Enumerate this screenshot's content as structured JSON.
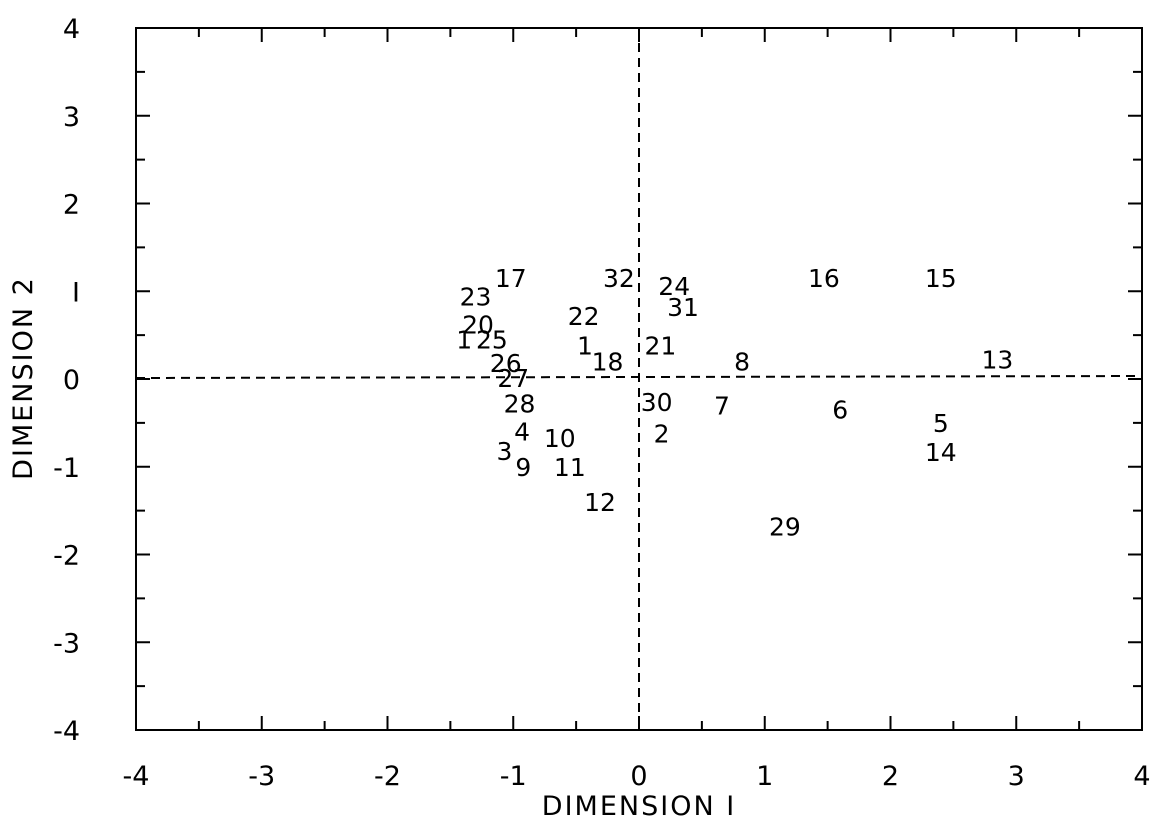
{
  "chart_data": {
    "type": "scatter",
    "title": "",
    "xlabel": "DIMENSION I",
    "ylabel": "DIMENSION 2",
    "xlim": [
      -4,
      4
    ],
    "ylim": [
      -4,
      4
    ],
    "x_ticks": [
      -4,
      -3,
      -2,
      -1,
      0,
      1,
      2,
      3,
      4
    ],
    "y_ticks": [
      -4,
      -3,
      -2,
      -1,
      0,
      1,
      2,
      3,
      4
    ],
    "x_tick_labels": [
      "-4",
      "-3",
      "-2",
      "-1",
      "0",
      "1",
      "2",
      "3",
      "4"
    ],
    "y_tick_labels": [
      "-4",
      "-3",
      "-2",
      "-1",
      "0",
      "I",
      "2",
      "3",
      "4"
    ],
    "grid": false,
    "reference_lines": "dashed lines at x=0 and y=0",
    "points": [
      {
        "label": "1",
        "x": -0.43,
        "y": 0.38
      },
      {
        "label": "2",
        "x": 0.18,
        "y": -0.62
      },
      {
        "label": "3",
        "x": -1.07,
        "y": -0.82
      },
      {
        "label": "4",
        "x": -0.93,
        "y": -0.6
      },
      {
        "label": "5",
        "x": 2.4,
        "y": -0.5
      },
      {
        "label": "6",
        "x": 1.6,
        "y": -0.35
      },
      {
        "label": "7",
        "x": 0.66,
        "y": -0.3
      },
      {
        "label": "8",
        "x": 0.82,
        "y": 0.2
      },
      {
        "label": "9",
        "x": -0.92,
        "y": -1.0
      },
      {
        "label": "10",
        "x": -0.63,
        "y": -0.67
      },
      {
        "label": "11",
        "x": -0.55,
        "y": -1.0
      },
      {
        "label": "12",
        "x": -0.31,
        "y": -1.4
      },
      {
        "label": "13",
        "x": 2.85,
        "y": 0.22
      },
      {
        "label": "14",
        "x": 2.4,
        "y": -0.83
      },
      {
        "label": "15",
        "x": 2.4,
        "y": 1.15
      },
      {
        "label": "16",
        "x": 1.47,
        "y": 1.15
      },
      {
        "label": "17",
        "x": -1.02,
        "y": 1.15
      },
      {
        "label": "18",
        "x": -0.25,
        "y": 0.2
      },
      {
        "label": "20",
        "x": -1.28,
        "y": 0.62
      },
      {
        "label": "21",
        "x": 0.17,
        "y": 0.38
      },
      {
        "label": "22",
        "x": -0.44,
        "y": 0.72
      },
      {
        "label": "23",
        "x": -1.3,
        "y": 0.94
      },
      {
        "label": "24",
        "x": 0.28,
        "y": 1.06
      },
      {
        "label": "25",
        "x": -1.17,
        "y": 0.45
      },
      {
        "label": "26",
        "x": -1.06,
        "y": 0.18
      },
      {
        "label": "27",
        "x": -1.0,
        "y": 0.01
      },
      {
        "label": "28",
        "x": -0.95,
        "y": -0.28
      },
      {
        "label": "29",
        "x": 1.16,
        "y": -1.68
      },
      {
        "label": "30",
        "x": 0.14,
        "y": -0.26
      },
      {
        "label": "31",
        "x": 0.35,
        "y": 0.82
      },
      {
        "label": "32",
        "x": -0.16,
        "y": 1.15
      }
    ],
    "extra_labels": [
      {
        "label": "1",
        "x": -1.39,
        "y": 0.45
      }
    ]
  }
}
